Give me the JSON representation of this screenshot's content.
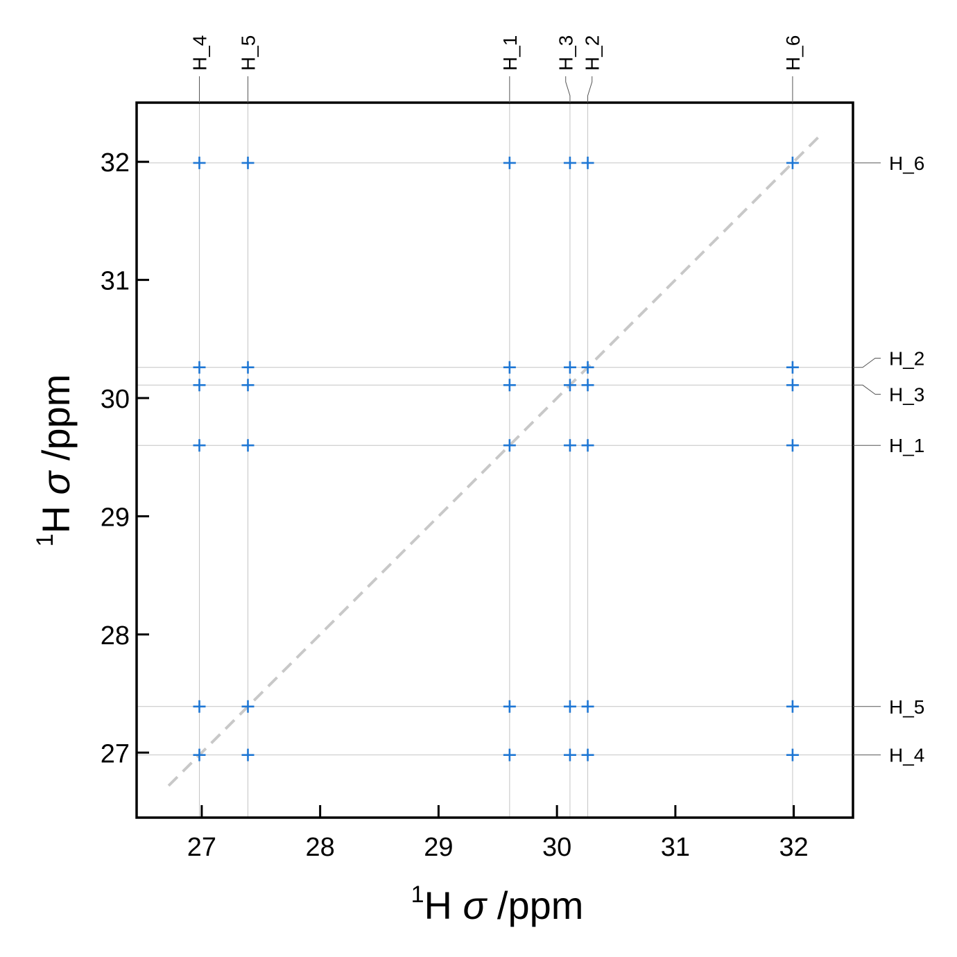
{
  "chart_data": {
    "type": "scatter",
    "xlabel_parts": {
      "sup": "1",
      "nucleus": "H",
      "symbol": "σ",
      "unit": " /ppm"
    },
    "ylabel_parts": {
      "sup": "1",
      "nucleus": "H",
      "symbol": "σ",
      "unit": " /ppm"
    },
    "xlim": [
      26.45,
      32.5
    ],
    "ylim": [
      26.45,
      32.5
    ],
    "xticks": [
      27,
      28,
      29,
      30,
      31,
      32
    ],
    "yticks": [
      27,
      28,
      29,
      30,
      31,
      32
    ],
    "grid": false,
    "legend": "none",
    "marker": "+",
    "marker_color": "#1f77d4",
    "diagonal": {
      "from": 26.72,
      "to": 32.25,
      "style": "dashed",
      "color": "#c8c8c8"
    },
    "nuclei": [
      {
        "label": "H_1",
        "shift": 29.6
      },
      {
        "label": "H_2",
        "shift": 30.26
      },
      {
        "label": "H_3",
        "shift": 30.11
      },
      {
        "label": "H_4",
        "shift": 26.98
      },
      {
        "label": "H_5",
        "shift": 27.39
      },
      {
        "label": "H_6",
        "shift": 31.99
      }
    ],
    "peaks": [
      {
        "x": 26.98,
        "y": 31.99
      },
      {
        "x": 27.39,
        "y": 31.99
      },
      {
        "x": 29.6,
        "y": 31.99
      },
      {
        "x": 30.11,
        "y": 31.99
      },
      {
        "x": 30.26,
        "y": 31.99
      },
      {
        "x": 31.99,
        "y": 31.99
      },
      {
        "x": 26.98,
        "y": 30.26
      },
      {
        "x": 27.39,
        "y": 30.26
      },
      {
        "x": 29.6,
        "y": 30.26
      },
      {
        "x": 30.11,
        "y": 30.26
      },
      {
        "x": 30.26,
        "y": 30.26
      },
      {
        "x": 31.99,
        "y": 30.26
      },
      {
        "x": 26.98,
        "y": 30.11
      },
      {
        "x": 27.39,
        "y": 30.11
      },
      {
        "x": 29.6,
        "y": 30.11
      },
      {
        "x": 30.11,
        "y": 30.11
      },
      {
        "x": 30.26,
        "y": 30.11
      },
      {
        "x": 31.99,
        "y": 30.11
      },
      {
        "x": 26.98,
        "y": 29.6
      },
      {
        "x": 27.39,
        "y": 29.6
      },
      {
        "x": 29.6,
        "y": 29.6
      },
      {
        "x": 30.11,
        "y": 29.6
      },
      {
        "x": 30.26,
        "y": 29.6
      },
      {
        "x": 31.99,
        "y": 29.6
      },
      {
        "x": 26.98,
        "y": 27.39
      },
      {
        "x": 27.39,
        "y": 27.39
      },
      {
        "x": 29.6,
        "y": 27.39
      },
      {
        "x": 30.11,
        "y": 27.39
      },
      {
        "x": 30.26,
        "y": 27.39
      },
      {
        "x": 31.99,
        "y": 27.39
      },
      {
        "x": 26.98,
        "y": 26.98
      },
      {
        "x": 27.39,
        "y": 26.98
      },
      {
        "x": 29.6,
        "y": 26.98
      },
      {
        "x": 30.11,
        "y": 26.98
      },
      {
        "x": 30.26,
        "y": 26.98
      },
      {
        "x": 31.99,
        "y": 26.98
      }
    ]
  }
}
